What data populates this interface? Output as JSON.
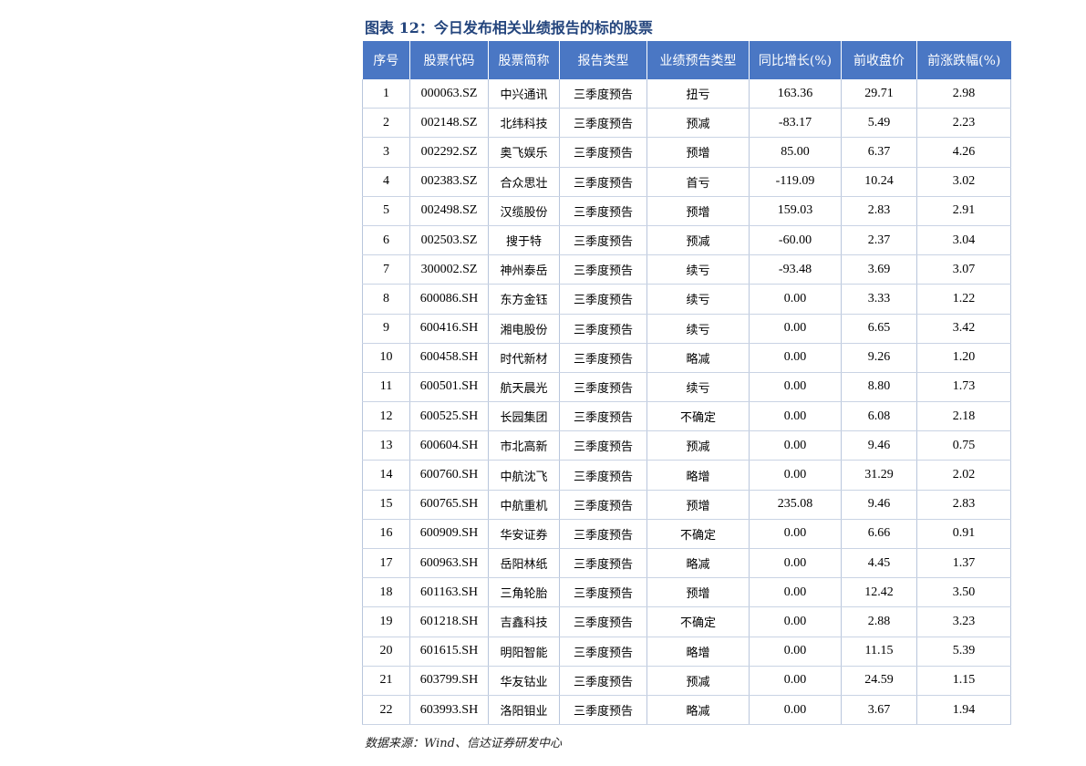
{
  "title": "图表 12：今日发布相关业绩报告的标的股票",
  "source": "数据来源：Wind、信达证券研发中心",
  "table": {
    "headers": [
      "序号",
      "股票代码",
      "股票简称",
      "报告类型",
      "业绩预告类型",
      "同比增长(%)",
      "前收盘价",
      "前涨跌幅(%)"
    ],
    "rows": [
      [
        "1",
        "000063.SZ",
        "中兴通讯",
        "三季度预告",
        "扭亏",
        "163.36",
        "29.71",
        "2.98"
      ],
      [
        "2",
        "002148.SZ",
        "北纬科技",
        "三季度预告",
        "预减",
        "-83.17",
        "5.49",
        "2.23"
      ],
      [
        "3",
        "002292.SZ",
        "奥飞娱乐",
        "三季度预告",
        "预增",
        "85.00",
        "6.37",
        "4.26"
      ],
      [
        "4",
        "002383.SZ",
        "合众思壮",
        "三季度预告",
        "首亏",
        "-119.09",
        "10.24",
        "3.02"
      ],
      [
        "5",
        "002498.SZ",
        "汉缆股份",
        "三季度预告",
        "预增",
        "159.03",
        "2.83",
        "2.91"
      ],
      [
        "6",
        "002503.SZ",
        "搜于特",
        "三季度预告",
        "预减",
        "-60.00",
        "2.37",
        "3.04"
      ],
      [
        "7",
        "300002.SZ",
        "神州泰岳",
        "三季度预告",
        "续亏",
        "-93.48",
        "3.69",
        "3.07"
      ],
      [
        "8",
        "600086.SH",
        "东方金钰",
        "三季度预告",
        "续亏",
        "0.00",
        "3.33",
        "1.22"
      ],
      [
        "9",
        "600416.SH",
        "湘电股份",
        "三季度预告",
        "续亏",
        "0.00",
        "6.65",
        "3.42"
      ],
      [
        "10",
        "600458.SH",
        "时代新材",
        "三季度预告",
        "略减",
        "0.00",
        "9.26",
        "1.20"
      ],
      [
        "11",
        "600501.SH",
        "航天晨光",
        "三季度预告",
        "续亏",
        "0.00",
        "8.80",
        "1.73"
      ],
      [
        "12",
        "600525.SH",
        "长园集团",
        "三季度预告",
        "不确定",
        "0.00",
        "6.08",
        "2.18"
      ],
      [
        "13",
        "600604.SH",
        "市北高新",
        "三季度预告",
        "预减",
        "0.00",
        "9.46",
        "0.75"
      ],
      [
        "14",
        "600760.SH",
        "中航沈飞",
        "三季度预告",
        "略增",
        "0.00",
        "31.29",
        "2.02"
      ],
      [
        "15",
        "600765.SH",
        "中航重机",
        "三季度预告",
        "预增",
        "235.08",
        "9.46",
        "2.83"
      ],
      [
        "16",
        "600909.SH",
        "华安证券",
        "三季度预告",
        "不确定",
        "0.00",
        "6.66",
        "0.91"
      ],
      [
        "17",
        "600963.SH",
        "岳阳林纸",
        "三季度预告",
        "略减",
        "0.00",
        "4.45",
        "1.37"
      ],
      [
        "18",
        "601163.SH",
        "三角轮胎",
        "三季度预告",
        "预增",
        "0.00",
        "12.42",
        "3.50"
      ],
      [
        "19",
        "601218.SH",
        "吉鑫科技",
        "三季度预告",
        "不确定",
        "0.00",
        "2.88",
        "3.23"
      ],
      [
        "20",
        "601615.SH",
        "明阳智能",
        "三季度预告",
        "略增",
        "0.00",
        "11.15",
        "5.39"
      ],
      [
        "21",
        "603799.SH",
        "华友钴业",
        "三季度预告",
        "预减",
        "0.00",
        "24.59",
        "1.15"
      ],
      [
        "22",
        "603993.SH",
        "洛阳钼业",
        "三季度预告",
        "略减",
        "0.00",
        "3.67",
        "1.94"
      ]
    ]
  },
  "colors": {
    "header_bg": "#4a77c4",
    "header_text": "#ffffff",
    "title": "#24457d"
  }
}
